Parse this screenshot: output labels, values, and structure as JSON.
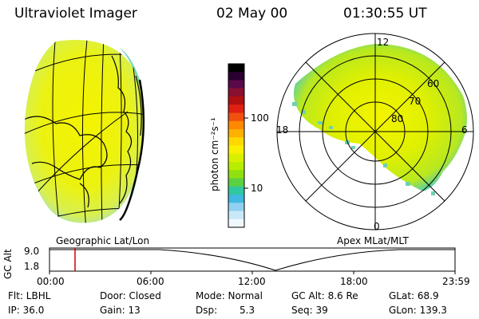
{
  "header": {
    "title": "Ultraviolet Imager",
    "date": "02 May 00",
    "time": "01:30:55 UT"
  },
  "colorbar": {
    "unit_label": "photon cm⁻²s⁻¹",
    "tick_labels": [
      "100",
      "10"
    ],
    "colors": [
      "#000000",
      "#2a0030",
      "#5a0a4a",
      "#8a1030",
      "#b01010",
      "#e02010",
      "#f05010",
      "#ff8800",
      "#ffb000",
      "#ffd800",
      "#f8f000",
      "#d8f000",
      "#b8ec00",
      "#90e010",
      "#5cd040",
      "#30c8a0",
      "#40b8e0",
      "#90d0f0",
      "#c8e8f8",
      "#f0f8ff"
    ]
  },
  "left_panel": {
    "label": "Geographic Lat/Lon"
  },
  "right_panel": {
    "label": "Apex MLat/MLT",
    "mlt_labels": {
      "top": "12",
      "left": "18",
      "right": "6",
      "bottom": "0"
    },
    "mlat_labels": [
      "60",
      "70",
      "80"
    ]
  },
  "timeline": {
    "axis_label": "GC Alt",
    "y_ticks": [
      "9.0",
      "1.8"
    ],
    "x_ticks": [
      "00:00",
      "06:00",
      "12:00",
      "18:00",
      "23:59"
    ],
    "current_time_fraction": 0.063,
    "marker_color": "#d00000"
  },
  "status": {
    "row1": {
      "filter": "Flt: LBHL",
      "door": "Door: Closed",
      "mode": "Mode: Normal",
      "gc_alt": "GC Alt: 8.6 Re",
      "glat": "GLat: 68.9"
    },
    "row2": {
      "ip": "IP: 36.0",
      "gain": "Gain: 13",
      "dsp_label": "Dsp:",
      "dsp_value": "5.3",
      "seq": "Seq: 39",
      "glon": "GLon: 139.3"
    }
  }
}
